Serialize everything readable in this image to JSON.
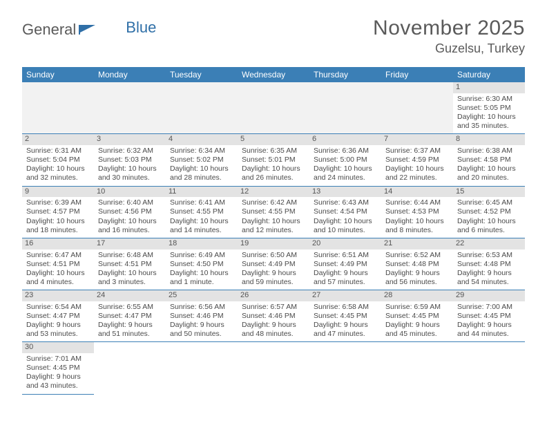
{
  "logo": {
    "part1": "General",
    "part2": "Blue"
  },
  "title": "November 2025",
  "location": "Guzelsu, Turkey",
  "colors": {
    "headerBg": "#3b7fb6",
    "headerText": "#ffffff",
    "bodyText": "#4a4a4a",
    "titleText": "#5a5a5a",
    "shade": "#eeeeee",
    "daynumBg": "#e3e3e3",
    "borderColor": "#3b7fb6"
  },
  "dayHeaders": [
    "Sunday",
    "Monday",
    "Tuesday",
    "Wednesday",
    "Thursday",
    "Friday",
    "Saturday"
  ],
  "weeks": [
    [
      null,
      null,
      null,
      null,
      null,
      null,
      {
        "n": "1",
        "sunrise": "Sunrise: 6:30 AM",
        "sunset": "Sunset: 5:05 PM",
        "daylight": "Daylight: 10 hours and 35 minutes."
      }
    ],
    [
      {
        "n": "2",
        "sunrise": "Sunrise: 6:31 AM",
        "sunset": "Sunset: 5:04 PM",
        "daylight": "Daylight: 10 hours and 32 minutes."
      },
      {
        "n": "3",
        "sunrise": "Sunrise: 6:32 AM",
        "sunset": "Sunset: 5:03 PM",
        "daylight": "Daylight: 10 hours and 30 minutes."
      },
      {
        "n": "4",
        "sunrise": "Sunrise: 6:34 AM",
        "sunset": "Sunset: 5:02 PM",
        "daylight": "Daylight: 10 hours and 28 minutes."
      },
      {
        "n": "5",
        "sunrise": "Sunrise: 6:35 AM",
        "sunset": "Sunset: 5:01 PM",
        "daylight": "Daylight: 10 hours and 26 minutes."
      },
      {
        "n": "6",
        "sunrise": "Sunrise: 6:36 AM",
        "sunset": "Sunset: 5:00 PM",
        "daylight": "Daylight: 10 hours and 24 minutes."
      },
      {
        "n": "7",
        "sunrise": "Sunrise: 6:37 AM",
        "sunset": "Sunset: 4:59 PM",
        "daylight": "Daylight: 10 hours and 22 minutes."
      },
      {
        "n": "8",
        "sunrise": "Sunrise: 6:38 AM",
        "sunset": "Sunset: 4:58 PM",
        "daylight": "Daylight: 10 hours and 20 minutes."
      }
    ],
    [
      {
        "n": "9",
        "sunrise": "Sunrise: 6:39 AM",
        "sunset": "Sunset: 4:57 PM",
        "daylight": "Daylight: 10 hours and 18 minutes."
      },
      {
        "n": "10",
        "sunrise": "Sunrise: 6:40 AM",
        "sunset": "Sunset: 4:56 PM",
        "daylight": "Daylight: 10 hours and 16 minutes."
      },
      {
        "n": "11",
        "sunrise": "Sunrise: 6:41 AM",
        "sunset": "Sunset: 4:55 PM",
        "daylight": "Daylight: 10 hours and 14 minutes."
      },
      {
        "n": "12",
        "sunrise": "Sunrise: 6:42 AM",
        "sunset": "Sunset: 4:55 PM",
        "daylight": "Daylight: 10 hours and 12 minutes."
      },
      {
        "n": "13",
        "sunrise": "Sunrise: 6:43 AM",
        "sunset": "Sunset: 4:54 PM",
        "daylight": "Daylight: 10 hours and 10 minutes."
      },
      {
        "n": "14",
        "sunrise": "Sunrise: 6:44 AM",
        "sunset": "Sunset: 4:53 PM",
        "daylight": "Daylight: 10 hours and 8 minutes."
      },
      {
        "n": "15",
        "sunrise": "Sunrise: 6:45 AM",
        "sunset": "Sunset: 4:52 PM",
        "daylight": "Daylight: 10 hours and 6 minutes."
      }
    ],
    [
      {
        "n": "16",
        "sunrise": "Sunrise: 6:47 AM",
        "sunset": "Sunset: 4:51 PM",
        "daylight": "Daylight: 10 hours and 4 minutes."
      },
      {
        "n": "17",
        "sunrise": "Sunrise: 6:48 AM",
        "sunset": "Sunset: 4:51 PM",
        "daylight": "Daylight: 10 hours and 3 minutes."
      },
      {
        "n": "18",
        "sunrise": "Sunrise: 6:49 AM",
        "sunset": "Sunset: 4:50 PM",
        "daylight": "Daylight: 10 hours and 1 minute."
      },
      {
        "n": "19",
        "sunrise": "Sunrise: 6:50 AM",
        "sunset": "Sunset: 4:49 PM",
        "daylight": "Daylight: 9 hours and 59 minutes."
      },
      {
        "n": "20",
        "sunrise": "Sunrise: 6:51 AM",
        "sunset": "Sunset: 4:49 PM",
        "daylight": "Daylight: 9 hours and 57 minutes."
      },
      {
        "n": "21",
        "sunrise": "Sunrise: 6:52 AM",
        "sunset": "Sunset: 4:48 PM",
        "daylight": "Daylight: 9 hours and 56 minutes."
      },
      {
        "n": "22",
        "sunrise": "Sunrise: 6:53 AM",
        "sunset": "Sunset: 4:48 PM",
        "daylight": "Daylight: 9 hours and 54 minutes."
      }
    ],
    [
      {
        "n": "23",
        "sunrise": "Sunrise: 6:54 AM",
        "sunset": "Sunset: 4:47 PM",
        "daylight": "Daylight: 9 hours and 53 minutes."
      },
      {
        "n": "24",
        "sunrise": "Sunrise: 6:55 AM",
        "sunset": "Sunset: 4:47 PM",
        "daylight": "Daylight: 9 hours and 51 minutes."
      },
      {
        "n": "25",
        "sunrise": "Sunrise: 6:56 AM",
        "sunset": "Sunset: 4:46 PM",
        "daylight": "Daylight: 9 hours and 50 minutes."
      },
      {
        "n": "26",
        "sunrise": "Sunrise: 6:57 AM",
        "sunset": "Sunset: 4:46 PM",
        "daylight": "Daylight: 9 hours and 48 minutes."
      },
      {
        "n": "27",
        "sunrise": "Sunrise: 6:58 AM",
        "sunset": "Sunset: 4:45 PM",
        "daylight": "Daylight: 9 hours and 47 minutes."
      },
      {
        "n": "28",
        "sunrise": "Sunrise: 6:59 AM",
        "sunset": "Sunset: 4:45 PM",
        "daylight": "Daylight: 9 hours and 45 minutes."
      },
      {
        "n": "29",
        "sunrise": "Sunrise: 7:00 AM",
        "sunset": "Sunset: 4:45 PM",
        "daylight": "Daylight: 9 hours and 44 minutes."
      }
    ],
    [
      {
        "n": "30",
        "sunrise": "Sunrise: 7:01 AM",
        "sunset": "Sunset: 4:45 PM",
        "daylight": "Daylight: 9 hours and 43 minutes."
      },
      null,
      null,
      null,
      null,
      null,
      null
    ]
  ]
}
